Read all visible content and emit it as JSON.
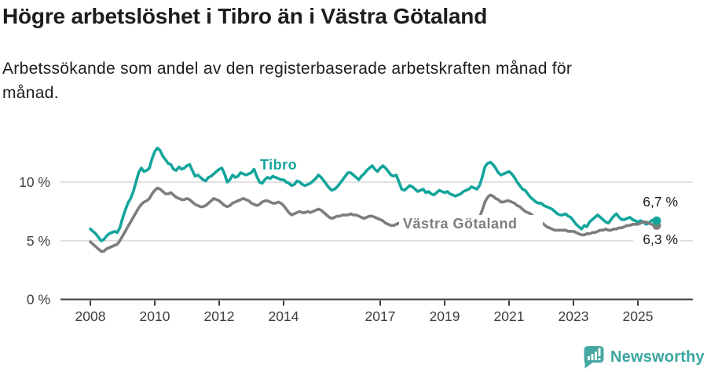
{
  "header": {
    "title": "Högre arbetslöshet i Tibro än i Västra Götaland",
    "subtitle_lines": [
      "Arbetssökande som andel av den registerbaserade arbetskraften månad för",
      "månad."
    ]
  },
  "chart_data": {
    "type": "line",
    "unit": "% av registerbaserad arbetskraft",
    "x_start_year": 2008,
    "x_points_per_year": 12,
    "x_ticks": [
      2008,
      2010,
      2012,
      2014,
      2017,
      2019,
      2021,
      2023,
      2025
    ],
    "y_ticks": [
      {
        "value": 0,
        "label": "0 %"
      },
      {
        "value": 5,
        "label": "5 %"
      },
      {
        "value": 10,
        "label": "10 %"
      }
    ],
    "ylim": [
      0,
      15.5
    ],
    "grid": "horizontal",
    "grid_color": "#d9d9d9",
    "axis_color": "#3d3d3d",
    "legend_position": "inline-labels",
    "series": [
      {
        "name": "Tibro",
        "color": "#13a59c",
        "end_label": "6,7 %",
        "end_value": 6.7,
        "values": [
          6.0,
          5.8,
          5.6,
          5.3,
          5.0,
          5.1,
          5.4,
          5.6,
          5.7,
          5.8,
          5.7,
          6.1,
          6.9,
          7.6,
          8.2,
          8.6,
          9.2,
          10.0,
          10.8,
          11.2,
          10.9,
          11.0,
          11.2,
          12.0,
          12.6,
          12.9,
          12.7,
          12.2,
          11.9,
          11.6,
          11.5,
          11.1,
          11.0,
          11.3,
          11.1,
          11.2,
          11.4,
          11.5,
          11.0,
          10.5,
          10.6,
          10.4,
          10.2,
          10.1,
          10.4,
          10.5,
          10.7,
          10.9,
          11.1,
          11.2,
          10.7,
          10.0,
          10.2,
          10.6,
          10.4,
          10.5,
          10.8,
          10.7,
          10.6,
          10.7,
          10.8,
          11.1,
          10.5,
          10.0,
          9.9,
          10.2,
          10.4,
          10.3,
          10.5,
          10.4,
          10.3,
          10.2,
          10.2,
          10.0,
          9.9,
          9.7,
          9.8,
          10.1,
          10.0,
          9.8,
          9.7,
          9.8,
          9.9,
          10.1,
          10.3,
          10.6,
          10.4,
          10.1,
          9.8,
          9.5,
          9.3,
          9.4,
          9.6,
          9.9,
          10.2,
          10.5,
          10.8,
          10.8,
          10.6,
          10.4,
          10.2,
          10.5,
          10.7,
          11.0,
          11.2,
          11.4,
          11.1,
          10.9,
          11.2,
          11.4,
          11.2,
          10.9,
          10.6,
          10.5,
          10.6,
          10.0,
          9.4,
          9.3,
          9.5,
          9.7,
          9.6,
          9.4,
          9.2,
          9.3,
          9.4,
          9.1,
          9.2,
          9.0,
          8.9,
          9.1,
          9.3,
          9.2,
          9.1,
          9.2,
          9.0,
          8.9,
          8.8,
          8.9,
          9.0,
          9.2,
          9.3,
          9.4,
          9.6,
          9.5,
          9.4,
          9.7,
          10.4,
          11.3,
          11.6,
          11.7,
          11.5,
          11.2,
          10.8,
          10.6,
          10.7,
          10.8,
          10.9,
          10.7,
          10.4,
          10.0,
          9.7,
          9.4,
          9.3,
          9.0,
          8.7,
          8.5,
          8.3,
          8.2,
          8.2,
          8.0,
          7.9,
          7.8,
          7.7,
          7.5,
          7.3,
          7.2,
          7.2,
          7.3,
          7.1,
          7.0,
          6.7,
          6.4,
          6.2,
          6.0,
          6.3,
          6.2,
          6.6,
          6.8,
          7.0,
          7.2,
          7.0,
          6.8,
          6.6,
          6.5,
          6.8,
          7.1,
          7.3,
          7.0,
          6.8,
          6.8,
          6.9,
          7.0,
          6.8,
          6.7,
          6.6,
          6.7,
          6.6,
          6.4,
          6.5,
          6.7,
          6.8,
          6.7
        ]
      },
      {
        "name": "Västra Götaland",
        "color": "#7d7d7d",
        "end_label": "6,3 %",
        "end_value": 6.3,
        "values": [
          4.9,
          4.7,
          4.5,
          4.3,
          4.1,
          4.1,
          4.3,
          4.4,
          4.5,
          4.6,
          4.7,
          5.0,
          5.4,
          5.8,
          6.2,
          6.6,
          7.0,
          7.4,
          7.8,
          8.1,
          8.3,
          8.4,
          8.6,
          9.0,
          9.3,
          9.5,
          9.4,
          9.2,
          9.0,
          9.0,
          9.1,
          8.9,
          8.7,
          8.6,
          8.5,
          8.5,
          8.6,
          8.5,
          8.3,
          8.1,
          8.0,
          7.9,
          7.9,
          8.0,
          8.2,
          8.4,
          8.6,
          8.5,
          8.4,
          8.2,
          8.0,
          7.9,
          8.0,
          8.2,
          8.3,
          8.4,
          8.5,
          8.6,
          8.5,
          8.4,
          8.2,
          8.1,
          8.0,
          8.1,
          8.3,
          8.4,
          8.4,
          8.3,
          8.2,
          8.2,
          8.3,
          8.2,
          8.0,
          7.7,
          7.4,
          7.2,
          7.3,
          7.4,
          7.5,
          7.4,
          7.4,
          7.5,
          7.4,
          7.5,
          7.6,
          7.7,
          7.6,
          7.4,
          7.2,
          7.0,
          6.9,
          7.0,
          7.1,
          7.1,
          7.2,
          7.2,
          7.2,
          7.3,
          7.2,
          7.2,
          7.1,
          7.0,
          6.9,
          7.0,
          7.1,
          7.1,
          7.0,
          6.9,
          6.8,
          6.7,
          6.5,
          6.4,
          6.3,
          6.3,
          6.4,
          6.5,
          6.5,
          6.4,
          6.5,
          6.5,
          6.5,
          6.4,
          6.4,
          6.3,
          6.4,
          6.4,
          6.5,
          6.4,
          6.5,
          6.5,
          6.4,
          6.5,
          6.5,
          6.4,
          6.4,
          6.4,
          6.5,
          6.4,
          6.5,
          6.5,
          6.6,
          6.6,
          6.7,
          6.7,
          6.8,
          7.0,
          7.6,
          8.3,
          8.7,
          8.9,
          8.8,
          8.6,
          8.5,
          8.3,
          8.3,
          8.4,
          8.4,
          8.3,
          8.2,
          8.0,
          7.9,
          7.7,
          7.5,
          7.4,
          7.3,
          7.1,
          7.0,
          6.8,
          6.6,
          6.4,
          6.2,
          6.1,
          6.0,
          5.9,
          5.9,
          5.9,
          5.9,
          5.9,
          5.8,
          5.8,
          5.8,
          5.7,
          5.6,
          5.5,
          5.5,
          5.6,
          5.6,
          5.7,
          5.7,
          5.8,
          5.9,
          5.9,
          6.0,
          5.9,
          5.9,
          6.0,
          6.0,
          6.1,
          6.1,
          6.2,
          6.3,
          6.3,
          6.4,
          6.4,
          6.4,
          6.5,
          6.6,
          6.6,
          6.5,
          6.4,
          6.35,
          6.3
        ]
      }
    ]
  },
  "footer": {
    "brand": "Newsworthy",
    "brand_color": "#3ba69f",
    "logo_icon": "bar-chart-speech-bubble-icon"
  }
}
